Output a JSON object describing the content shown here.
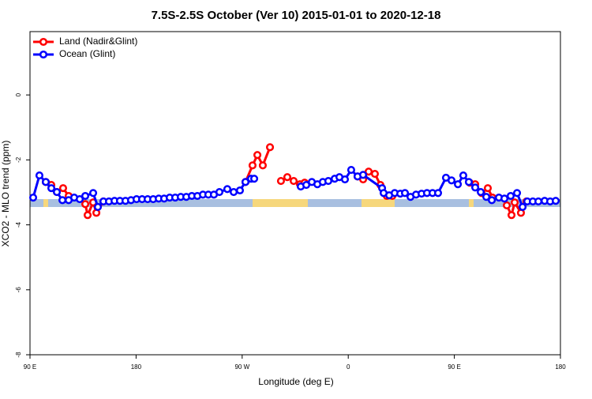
{
  "chart_data": {
    "type": "line",
    "title": "7.5S-2.5S October (Ver 10)   2015-01-01 to 2020-12-18",
    "x_label": "Longitude (deg E)",
    "y_label": "XCO2 - MLO trend (ppm)",
    "xlim": [
      90,
      540
    ],
    "xticks": [
      {
        "value": 90,
        "label": "90 E"
      },
      {
        "value": 180,
        "label": "180"
      },
      {
        "value": 270,
        "label": "90 W"
      },
      {
        "value": 360,
        "label": "0"
      },
      {
        "value": 450,
        "label": "90 E"
      },
      {
        "value": 540,
        "label": "180"
      }
    ],
    "ylim": [
      -8,
      1.95
    ],
    "yticks": [
      -8,
      -6,
      -4,
      -2,
      0
    ],
    "legend": "top-left",
    "series": [
      {
        "name": "Land (Nadir&Glint)",
        "color": "#ff0000",
        "x": [
          103.4,
          108.1,
          112.8,
          118.1,
          122.8,
          125,
          136.9,
          138.9,
          143.6,
          146.3,
          152.3,
          200,
          272.8,
          278.8,
          282.9,
          287.5,
          293.6,
          296,
          302.9,
          308.3,
          313.7,
          319.0,
          323.0,
          340,
          367.9,
          372.6,
          377.3,
          382.6,
          387.3,
          392.7,
          397.4,
          420,
          463.0,
          467.7,
          473.1,
          478.4,
          482.4,
          485,
          494.5,
          498.5,
          501.2,
          506.5,
          511.2
        ],
        "values": [
          -2.68,
          -2.77,
          -2.99,
          -2.87,
          -3.11,
          null,
          -3.36,
          -3.7,
          -3.31,
          -3.63,
          -3.28,
          null,
          -2.68,
          -2.17,
          -1.85,
          -2.17,
          -1.61,
          null,
          -2.65,
          -2.53,
          -2.65,
          -2.75,
          -2.7,
          null,
          -2.51,
          -2.6,
          -2.36,
          -2.43,
          -2.77,
          -3.11,
          -3.11,
          null,
          -2.7,
          -2.75,
          -3.02,
          -2.87,
          -3.16,
          null,
          -3.4,
          -3.7,
          -3.31,
          -3.63,
          -3.28
        ]
      },
      {
        "name": "Ocean (Glint)",
        "color": "#0000ff",
        "x": [
          92.7,
          98.0,
          103.4,
          108.1,
          112.8,
          117.5,
          122.8,
          127.5,
          132.2,
          136.9,
          143.6,
          147.6,
          152.3,
          157.0,
          161.7,
          166.3,
          171.0,
          175.7,
          180.4,
          185.1,
          189.8,
          194.5,
          199.2,
          203.8,
          208.5,
          213.2,
          217.9,
          222.6,
          227.3,
          232.0,
          236.7,
          241.3,
          246.0,
          250.7,
          257.4,
          262.8,
          268.1,
          272.8,
          277.5,
          280.2,
          300,
          319.7,
          324.4,
          329.1,
          333.8,
          338.4,
          343.1,
          348.5,
          352.5,
          357.2,
          362.5,
          367.9,
          372.6,
          388.7,
          390.0,
          394.7,
          399.4,
          404.1,
          408.1,
          412.8,
          417.5,
          422.2,
          426.8,
          431.5,
          436.2,
          442.9,
          447.6,
          453.0,
          457.6,
          462.3,
          467.7,
          472.4,
          477.1,
          481.8,
          487.8,
          492.5,
          497.8,
          503.2,
          507.9,
          511.9,
          516.6,
          521.3,
          526.6,
          531.3,
          536.0
        ],
        "values": [
          -3.16,
          -2.48,
          -2.68,
          -2.87,
          -2.99,
          -3.24,
          -3.24,
          -3.16,
          -3.21,
          -3.11,
          -3.02,
          -3.45,
          -3.28,
          -3.28,
          -3.26,
          -3.26,
          -3.26,
          -3.24,
          -3.21,
          -3.21,
          -3.21,
          -3.21,
          -3.19,
          -3.19,
          -3.16,
          -3.16,
          -3.14,
          -3.14,
          -3.11,
          -3.11,
          -3.07,
          -3.07,
          -3.07,
          -2.99,
          -2.9,
          -2.99,
          -2.94,
          -2.68,
          -2.58,
          -2.58,
          null,
          -2.82,
          -2.77,
          -2.68,
          -2.75,
          -2.68,
          -2.65,
          -2.58,
          -2.53,
          -2.6,
          -2.31,
          -2.51,
          -2.46,
          -2.87,
          -3.02,
          -3.09,
          -3.02,
          -3.04,
          -3.02,
          -3.14,
          -3.07,
          -3.04,
          -3.02,
          -3.02,
          -3.02,
          -2.55,
          -2.63,
          -2.75,
          -2.48,
          -2.68,
          -2.85,
          -2.99,
          -3.14,
          -3.24,
          -3.16,
          -3.19,
          -3.11,
          -3.02,
          -3.45,
          -3.28,
          -3.28,
          -3.28,
          -3.26,
          -3.28,
          -3.26
        ]
      }
    ]
  }
}
